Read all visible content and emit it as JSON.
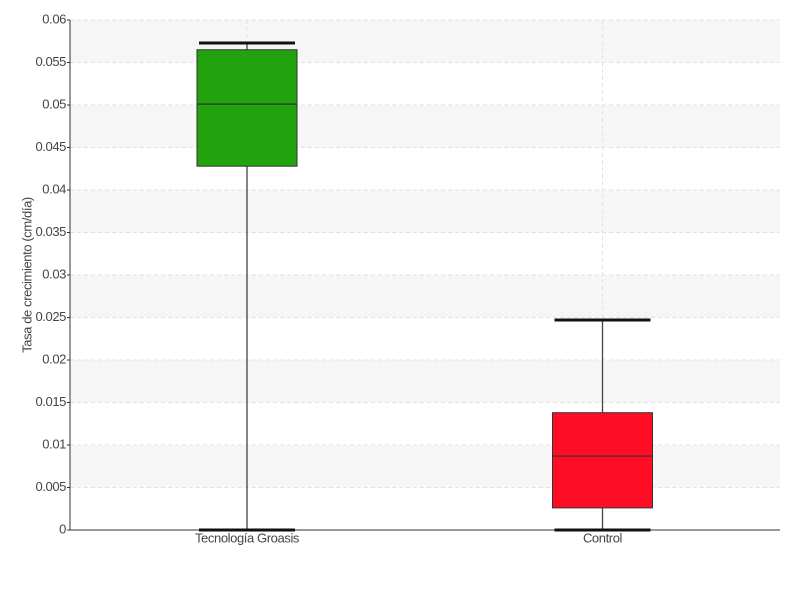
{
  "chart_data": {
    "type": "box",
    "ylabel": "Tasa de crecimiento (cm/día)",
    "categories": [
      "Tecnología Groasis",
      "Control"
    ],
    "boxes": [
      {
        "whislo": 0,
        "q1": 0.0428,
        "median": 0.0501,
        "q3": 0.0565,
        "whishi": 0.0573,
        "color": "#22a20d"
      },
      {
        "whislo": 0,
        "q1": 0.0026,
        "median": 0.0087,
        "q3": 0.0138,
        "whishi": 0.0247,
        "color": "#ff0d25"
      }
    ],
    "ylim": [
      0,
      0.06
    ],
    "yticks": [
      0,
      0.005,
      0.01,
      0.015,
      0.02,
      0.025,
      0.03,
      0.035,
      0.04,
      0.045,
      0.05,
      0.055,
      0.06
    ],
    "grid": true
  }
}
